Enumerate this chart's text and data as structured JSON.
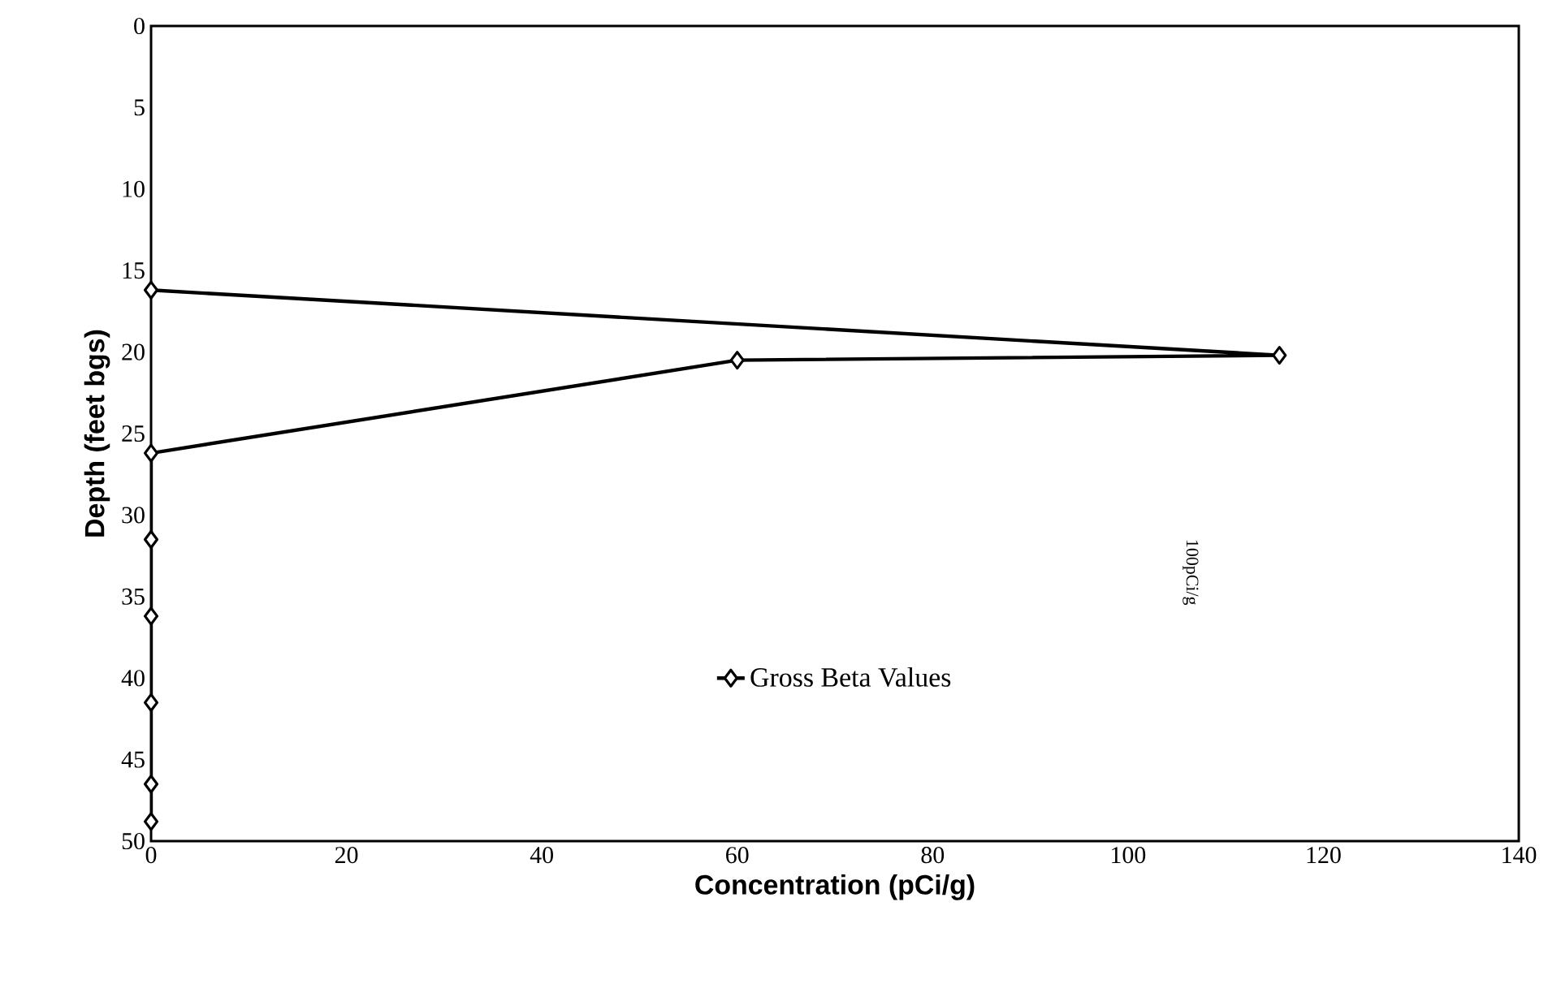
{
  "chart_data": {
    "type": "line",
    "xlabel": "Concentration (pCi/g)",
    "ylabel": "Depth (feet bgs)",
    "xlim": [
      0,
      140
    ],
    "xticks": [
      0,
      20,
      40,
      60,
      80,
      100,
      120,
      140
    ],
    "ylim": [
      50,
      0
    ],
    "yticks": [
      0,
      5,
      10,
      15,
      20,
      25,
      30,
      35,
      40,
      45,
      50
    ],
    "series": [
      {
        "name": "Gross Beta Values",
        "color": "#000000",
        "x": [
          0,
          115.5,
          60,
          0,
          0,
          0,
          0,
          0,
          0
        ],
        "values": [
          16.2,
          20.2,
          20.5,
          26.2,
          31.5,
          36.2,
          41.5,
          46.5,
          48.8
        ]
      }
    ],
    "marker": "diamond",
    "line_style": "solid",
    "legend": "bottom",
    "grid": false,
    "annotations": [
      "100pCi/g"
    ]
  }
}
